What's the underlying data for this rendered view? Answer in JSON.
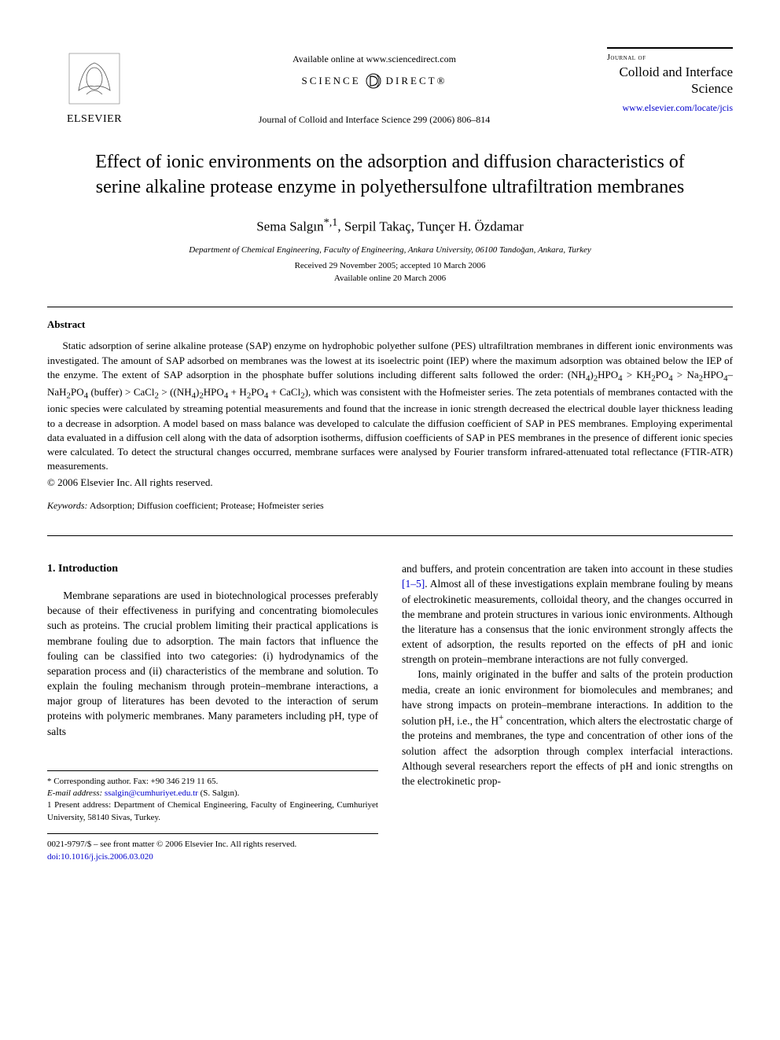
{
  "header": {
    "elsevier_label": "ELSEVIER",
    "available_online": "Available online at www.sciencedirect.com",
    "science_direct_left": "SCIENCE",
    "science_direct_right": "DIRECT®",
    "journal_ref": "Journal of Colloid and Interface Science 299 (2006) 806–814",
    "journal_of": "Journal of",
    "journal_name": "Colloid and Interface Science",
    "journal_link": "www.elsevier.com/locate/jcis"
  },
  "title": "Effect of ionic environments on the adsorption and diffusion characteristics of serine alkaline protease enzyme in polyethersulfone ultrafiltration membranes",
  "authors_html": "Sema Salgın<sup>*,1</sup>, Serpil Takaç, Tunçer H. Özdamar",
  "affiliation": "Department of Chemical Engineering, Faculty of Engineering, Ankara University, 06100 Tandoğan, Ankara, Turkey",
  "dates_received": "Received 29 November 2005; accepted 10 March 2006",
  "dates_available": "Available online 20 March 2006",
  "abstract": {
    "heading": "Abstract",
    "text_html": "Static adsorption of serine alkaline protease (SAP) enzyme on hydrophobic polyether sulfone (PES) ultrafiltration membranes in different ionic environments was investigated. The amount of SAP adsorbed on membranes was the lowest at its isoelectric point (IEP) where the maximum adsorption was obtained below the IEP of the enzyme. The extent of SAP adsorption in the phosphate buffer solutions including different salts followed the order: (NH<sub>4</sub>)<sub>2</sub>HPO<sub>4</sub> > KH<sub>2</sub>PO<sub>4</sub> > Na<sub>2</sub>HPO<sub>4</sub>–NaH<sub>2</sub>PO<sub>4</sub> (buffer) > CaCl<sub>2</sub> > ((NH<sub>4</sub>)<sub>2</sub>HPO<sub>4</sub> + H<sub>2</sub>PO<sub>4</sub> + CaCl<sub>2</sub>), which was consistent with the Hofmeister series. The zeta potentials of membranes contacted with the ionic species were calculated by streaming potential measurements and found that the increase in ionic strength decreased the electrical double layer thickness leading to a decrease in adsorption. A model based on mass balance was developed to calculate the diffusion coefficient of SAP in PES membranes. Employing experimental data evaluated in a diffusion cell along with the data of adsorption isotherms, diffusion coefficients of SAP in PES membranes in the presence of different ionic species were calculated. To detect the structural changes occurred, membrane surfaces were analysed by Fourier transform infrared-attenuated total reflectance (FTIR-ATR) measurements.",
    "copyright": "© 2006 Elsevier Inc. All rights reserved."
  },
  "keywords": {
    "label": "Keywords:",
    "text": " Adsorption; Diffusion coefficient; Protease; Hofmeister series"
  },
  "intro": {
    "heading": "1. Introduction",
    "col1_p1": "Membrane separations are used in biotechnological processes preferably because of their effectiveness in purifying and concentrating biomolecules such as proteins. The crucial problem limiting their practical applications is membrane fouling due to adsorption. The main factors that influence the fouling can be classified into two categories: (i) hydrodynamics of the separation process and (ii) characteristics of the membrane and solution. To explain the fouling mechanism through protein–membrane interactions, a major group of literatures has been devoted to the interaction of serum proteins with polymeric membranes. Many parameters including pH, type of salts",
    "col2_p1_html": "and buffers, and protein concentration are taken into account in these studies <span class=\"cite\">[1–5]</span>. Almost all of these investigations explain membrane fouling by means of electrokinetic measurements, colloidal theory, and the changes occurred in the membrane and protein structures in various ionic environments. Although the literature has a consensus that the ionic environment strongly affects the extent of adsorption, the results reported on the effects of pH and ionic strength on protein–membrane interactions are not fully converged.",
    "col2_p2_html": "Ions, mainly originated in the buffer and salts of the protein production media, create an ionic environment for biomolecules and membranes; and have strong impacts on protein–membrane interactions. In addition to the solution pH, i.e., the H<sup>+</sup> concentration, which alters the electrostatic charge of the proteins and membranes, the type and concentration of other ions of the solution affect the adsorption through complex interfacial interactions. Although several researchers report the effects of pH and ionic strengths on the electrokinetic prop-"
  },
  "footnotes": {
    "corresponding": "* Corresponding author. Fax: +90 346 219 11 65.",
    "email_label": "E-mail address:",
    "email": " ssalgin@cumhuriyet.edu.tr",
    "email_suffix": " (S. Salgın).",
    "present": "1 Present address: Department of Chemical Engineering, Faculty of Engineering, Cumhuriyet University, 58140 Sivas, Turkey."
  },
  "footer": {
    "line1": "0021-9797/$ – see front matter © 2006 Elsevier Inc. All rights reserved.",
    "doi": "doi:10.1016/j.jcis.2006.03.020"
  },
  "colors": {
    "text": "#000000",
    "link": "#0000cc",
    "background": "#ffffff"
  }
}
